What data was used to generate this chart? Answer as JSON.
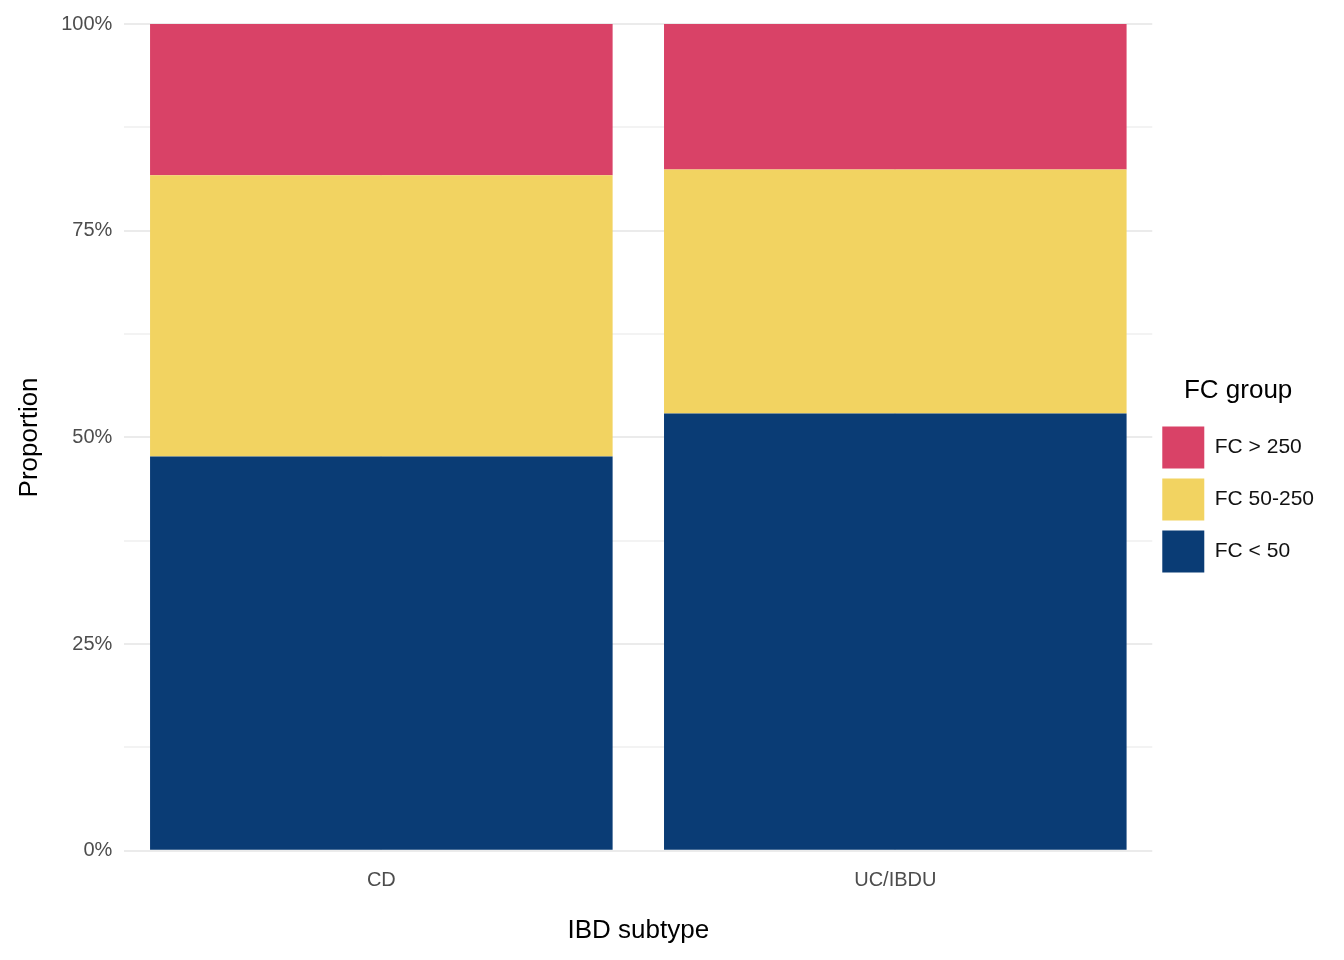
{
  "chart_data": {
    "type": "bar",
    "stacked": true,
    "xlabel": "IBD subtype",
    "ylabel": "Proportion",
    "legend_title": "FC group",
    "legend": "right",
    "grid": true,
    "categories": [
      "CD",
      "UC/IBDU"
    ],
    "series": [
      {
        "name": "FC < 50",
        "color": "#0a3c75",
        "values": [
          47.7,
          52.9
        ]
      },
      {
        "name": "FC 50-250",
        "color": "#f2d361",
        "values": [
          34.0,
          29.5
        ]
      },
      {
        "name": "FC > 250",
        "color": "#d94267",
        "values": [
          18.3,
          17.6
        ]
      }
    ],
    "ylim": [
      0,
      100
    ],
    "yticks": [
      {
        "value": 0,
        "label": "0%"
      },
      {
        "value": 12.5,
        "label": null
      },
      {
        "value": 25,
        "label": "25%"
      },
      {
        "value": 37.5,
        "label": null
      },
      {
        "value": 50,
        "label": "50%"
      },
      {
        "value": 62.5,
        "label": null
      },
      {
        "value": 75,
        "label": "75%"
      },
      {
        "value": 87.5,
        "label": null
      },
      {
        "value": 100,
        "label": "100%"
      }
    ]
  }
}
